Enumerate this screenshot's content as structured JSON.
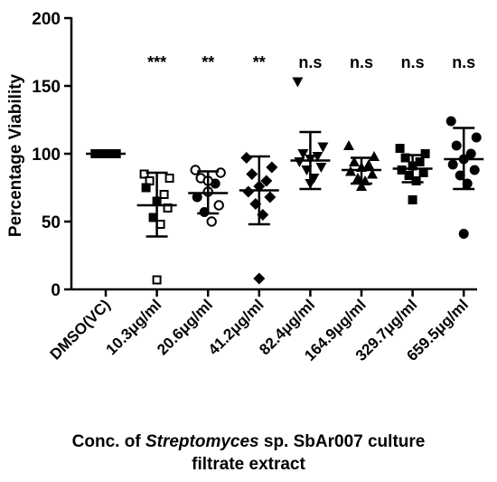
{
  "chart_data": {
    "type": "scatter",
    "ylabel": "Percentage Viability",
    "xlabel_line1_prefix": "Conc. of ",
    "xlabel_line1_italic": "Streptomyces",
    "xlabel_line1_suffix": " sp. SbAr007 culture",
    "xlabel_line2": "filtrate extract",
    "ylim": [
      0,
      200
    ],
    "yticks": [
      "0",
      "50",
      "100",
      "150",
      "200"
    ],
    "categories": [
      "DMSO(VC)",
      "10.3μg/ml",
      "20.6μg/ml",
      "41.2μg/ml",
      "82.4μg/ml",
      "164.9μg/ml",
      "329.7μg/ml",
      "659.5μg/ml"
    ],
    "significance": [
      "",
      "***",
      "**",
      "**",
      "n.s",
      "n.s",
      "n.s",
      "n.s"
    ],
    "groups": [
      {
        "marker": "square-filled",
        "mean": 100,
        "sd_low": 100,
        "sd_high": 100,
        "points": [
          100,
          100,
          100,
          100,
          100,
          100,
          100,
          100,
          100,
          100
        ]
      },
      {
        "marker": "square-mixed",
        "mean": 62,
        "sd_low": 39,
        "sd_high": 86,
        "points": [
          85,
          82,
          80,
          70,
          65,
          75,
          60,
          53,
          48,
          7
        ],
        "filled": [
          false,
          false,
          false,
          false,
          true,
          true,
          false,
          true,
          false,
          false
        ]
      },
      {
        "marker": "circle-mixed",
        "mean": 71,
        "sd_low": 56,
        "sd_high": 87,
        "points": [
          88,
          86,
          82,
          78,
          72,
          68,
          62,
          57,
          50,
          80
        ],
        "filled": [
          false,
          false,
          false,
          true,
          false,
          true,
          false,
          true,
          false,
          false
        ]
      },
      {
        "marker": "diamond",
        "mean": 73,
        "sd_low": 48,
        "sd_high": 98,
        "points": [
          97,
          90,
          85,
          80,
          76,
          72,
          68,
          63,
          55,
          8
        ]
      },
      {
        "marker": "triangle-down",
        "mean": 95,
        "sd_low": 74,
        "sd_high": 116,
        "points": [
          153,
          105,
          100,
          98,
          96,
          94,
          90,
          88,
          82,
          78
        ]
      },
      {
        "marker": "triangle-up",
        "mean": 88,
        "sd_low": 78,
        "sd_high": 97,
        "points": [
          106,
          98,
          94,
          92,
          90,
          87,
          85,
          82,
          80,
          76
        ]
      },
      {
        "marker": "square-filled",
        "mean": 89,
        "sd_low": 79,
        "sd_high": 99,
        "points": [
          104,
          100,
          97,
          94,
          91,
          88,
          86,
          84,
          80,
          66
        ]
      },
      {
        "marker": "circle-filled",
        "mean": 96,
        "sd_low": 74,
        "sd_high": 119,
        "points": [
          124,
          112,
          106,
          100,
          96,
          92,
          88,
          84,
          78,
          41
        ]
      }
    ]
  }
}
